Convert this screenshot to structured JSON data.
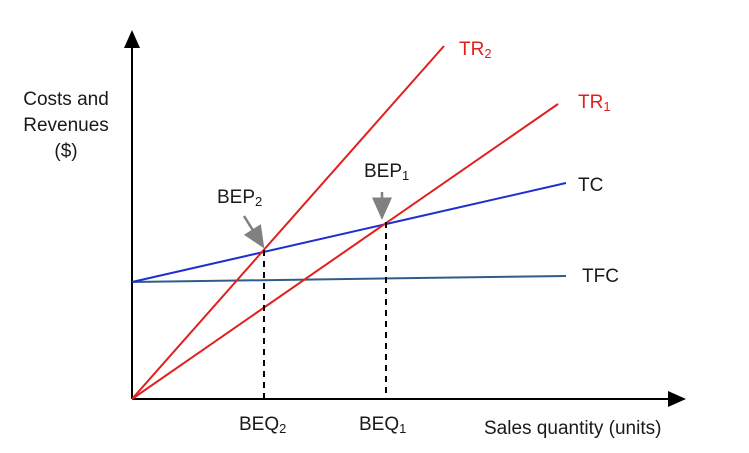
{
  "axes": {
    "y_label_lines": [
      "Costs and",
      "Revenues",
      "($)"
    ],
    "x_label": "Sales quantity (units)"
  },
  "lines": {
    "tr2": {
      "label": "TR",
      "sub": "2",
      "color": "#e0201e"
    },
    "tr1": {
      "label": "TR",
      "sub": "1",
      "color": "#e0201e"
    },
    "tc": {
      "label": "TC",
      "color": "#1f2fcf"
    },
    "tfc": {
      "label": "TFC",
      "color": "#2f5d8a"
    }
  },
  "points": {
    "bep2": {
      "label": "BEP",
      "sub": "2"
    },
    "bep1": {
      "label": "BEP",
      "sub": "1"
    },
    "beq2": {
      "label": "BEQ",
      "sub": "2"
    },
    "beq1": {
      "label": "BEQ",
      "sub": "1"
    }
  },
  "colors": {
    "axis": "#000000",
    "arrow": "#808080",
    "dashed": "#000000"
  }
}
